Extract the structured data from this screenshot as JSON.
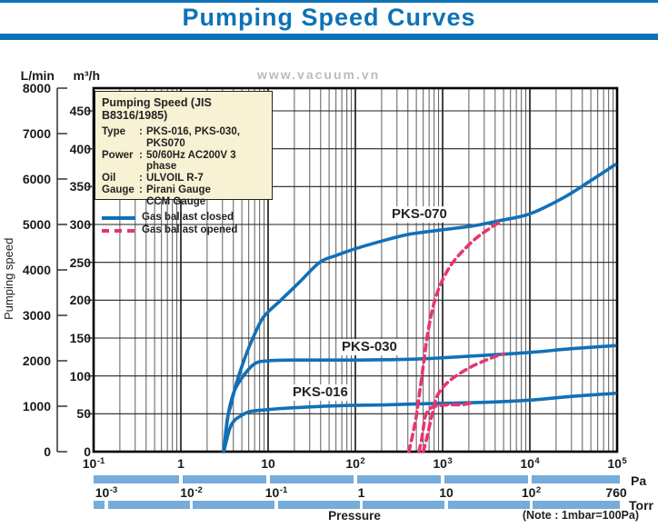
{
  "header": {
    "title": "Pumping Speed Curves"
  },
  "watermark": "www.vacuum.vn",
  "y_axis": {
    "primary_unit": "L/min",
    "secondary_unit": "m³/h",
    "axis_title": "Pumping speed",
    "lmin_ticks": [
      8000,
      7000,
      6000,
      5000,
      4000,
      3000,
      2000,
      1000,
      0
    ],
    "m3h_ticks": [
      450,
      400,
      350,
      300,
      250,
      200,
      150,
      100,
      50,
      0
    ]
  },
  "x_axis": {
    "title": "Pressure",
    "note": "(Note : 1mbar=100Pa)",
    "pa_label": "Pa",
    "torr_label": "Torr",
    "pa_ticks": [
      {
        "base": "10",
        "exp": "-1",
        "log": -1
      },
      {
        "base": "1",
        "exp": "",
        "log": 0
      },
      {
        "base": "10",
        "exp": "",
        "log": 1
      },
      {
        "base": "10",
        "exp": "2",
        "log": 2
      },
      {
        "base": "10",
        "exp": "3",
        "log": 3
      },
      {
        "base": "10",
        "exp": "4",
        "log": 4
      },
      {
        "base": "10",
        "exp": "5",
        "log": 5
      }
    ],
    "torr_ticks": [
      {
        "base": "10",
        "exp": "-3"
      },
      {
        "base": "10",
        "exp": "-2"
      },
      {
        "base": "10",
        "exp": "-1"
      },
      {
        "base": "1",
        "exp": ""
      },
      {
        "base": "10",
        "exp": ""
      },
      {
        "base": "10",
        "exp": "2"
      },
      {
        "base": "760",
        "exp": ""
      }
    ]
  },
  "legend": {
    "title": "Pumping Speed (JIS B8316/1985)",
    "rows": [
      {
        "label": "Type",
        "colon": ":",
        "value": "PKS-016, PKS-030, PKS070"
      },
      {
        "label": "Power",
        "colon": ":",
        "value": "50/60Hz AC200V 3 phase"
      },
      {
        "label": "Oil",
        "colon": ":",
        "value": "ULVOIL R-7"
      },
      {
        "label": "Gauge",
        "colon": ":",
        "value": "Pirani Gauge"
      },
      {
        "label": "",
        "colon": "",
        "value": "CCM Gauge"
      }
    ],
    "series_keys": [
      {
        "style": "solid",
        "label": "Gas ballast closed"
      },
      {
        "style": "dashed",
        "label": "Gas ballast opened"
      }
    ]
  },
  "colors": {
    "accent_blue": "#0d72b8",
    "curve_blue": "#1170b8",
    "curve_pink": "#e8356d",
    "bar_blue": "#76acd9",
    "legend_bg": "#f8f2d4",
    "watermark_gray": "#bcbcbc"
  },
  "chart_data": {
    "type": "line",
    "title": "Pumping Speed Curves",
    "x_scale": "log",
    "xlabel": "Pressure",
    "x_units": [
      "Pa",
      "Torr"
    ],
    "xlim_pa": [
      0.1,
      100000
    ],
    "ylabel": "Pumping speed",
    "y_units": [
      "L/min",
      "m³/h"
    ],
    "ylim_lmin": [
      0,
      8000
    ],
    "ylim_m3h": [
      0,
      480
    ],
    "y_grid_step_m3h": 50,
    "y_grid_max_m3h": 450,
    "grid": "on",
    "legend_position": "top-left",
    "curve_labels": [
      "PKS-070",
      "PKS-030",
      "PKS-016"
    ],
    "series": [
      {
        "name": "PKS-070",
        "gas_ballast": "closed",
        "style": "solid",
        "color": "blue",
        "points_pa_m3h": [
          [
            3.1,
            0
          ],
          [
            3.4,
            42
          ],
          [
            3.7,
            59
          ],
          [
            4.1,
            80
          ],
          [
            4.6,
            100
          ],
          [
            5.5,
            126
          ],
          [
            6.7,
            150
          ],
          [
            8.9,
            178
          ],
          [
            14,
            200
          ],
          [
            23,
            224
          ],
          [
            39,
            250
          ],
          [
            60,
            259
          ],
          [
            100,
            268
          ],
          [
            200,
            278
          ],
          [
            410,
            287
          ],
          [
            1000,
            293
          ],
          [
            2200,
            298
          ],
          [
            4500,
            305
          ],
          [
            10000,
            314
          ],
          [
            24000,
            335
          ],
          [
            50000,
            358
          ],
          [
            95000,
            379
          ]
        ]
      },
      {
        "name": "PKS-030",
        "gas_ballast": "closed",
        "style": "solid",
        "color": "blue",
        "points_pa_m3h": [
          [
            3.1,
            0
          ],
          [
            3.5,
            50
          ],
          [
            4.1,
            80
          ],
          [
            5.2,
            100
          ],
          [
            7,
            116
          ],
          [
            10,
            120
          ],
          [
            23,
            121
          ],
          [
            100,
            121
          ],
          [
            410,
            122
          ],
          [
            1000,
            124
          ],
          [
            2800,
            127
          ],
          [
            10000,
            131
          ],
          [
            30000,
            136
          ],
          [
            95000,
            140
          ]
        ]
      },
      {
        "name": "PKS-016",
        "gas_ballast": "closed",
        "style": "solid",
        "color": "blue",
        "points_pa_m3h": [
          [
            3.1,
            0
          ],
          [
            3.6,
            29
          ],
          [
            4.1,
            41
          ],
          [
            5,
            48
          ],
          [
            6.2,
            53
          ],
          [
            8.9,
            55
          ],
          [
            14,
            57
          ],
          [
            29,
            59
          ],
          [
            76,
            61
          ],
          [
            255,
            62
          ],
          [
            1000,
            64
          ],
          [
            2800,
            65
          ],
          [
            10000,
            68
          ],
          [
            30000,
            73
          ],
          [
            95000,
            77
          ]
        ]
      },
      {
        "name": "PKS-070",
        "gas_ballast": "opened",
        "style": "dashed",
        "color": "pink",
        "points_pa_m3h": [
          [
            410,
            0
          ],
          [
            455,
            23
          ],
          [
            500,
            47
          ],
          [
            536,
            72
          ],
          [
            576,
            98
          ],
          [
            620,
            126
          ],
          [
            665,
            152
          ],
          [
            733,
            178
          ],
          [
            806,
            198
          ],
          [
            908,
            216
          ],
          [
            1074,
            234
          ],
          [
            1333,
            251
          ],
          [
            1737,
            266
          ],
          [
            2427,
            282
          ],
          [
            3388,
            294
          ],
          [
            4742,
            305
          ]
        ]
      },
      {
        "name": "PKS-030",
        "gas_ballast": "opened",
        "style": "dashed",
        "color": "pink",
        "points_pa_m3h": [
          [
            600,
            0
          ],
          [
            665,
            20
          ],
          [
            733,
            42
          ],
          [
            787,
            56
          ],
          [
            845,
            71
          ],
          [
            977,
            83
          ],
          [
            1211,
            94
          ],
          [
            1616,
            104
          ],
          [
            2208,
            113
          ],
          [
            3162,
            121
          ],
          [
            4315,
            127
          ],
          [
            5000,
            129
          ]
        ]
      },
      {
        "name": "PKS-016",
        "gas_ballast": "opened",
        "style": "dashed",
        "color": "pink",
        "points_pa_m3h": [
          [
            536,
            0
          ],
          [
            576,
            17
          ],
          [
            603,
            32
          ],
          [
            631,
            46
          ],
          [
            681,
            54
          ],
          [
            767,
            59
          ],
          [
            931,
            61
          ],
          [
            1211,
            62
          ],
          [
            1656,
            62
          ],
          [
            2104,
            64
          ]
        ]
      }
    ]
  }
}
